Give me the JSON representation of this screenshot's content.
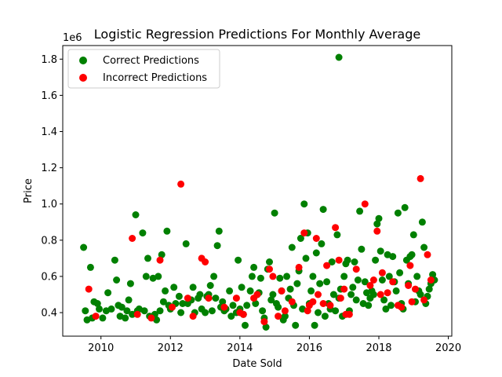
{
  "chart_data": {
    "type": "scatter",
    "title": "Logistic Regression Predictions For Monthly Average",
    "xlabel": "Date Sold",
    "ylabel": "Price",
    "y_offset_label": "1e6",
    "xlim": [
      2008.9,
      2020.1
    ],
    "ylim": [
      0.27,
      1.875
    ],
    "x_ticks": [
      2010,
      2012,
      2014,
      2016,
      2018,
      2020
    ],
    "x_tick_labels": [
      "2010",
      "2012",
      "2014",
      "2016",
      "2018",
      "2020"
    ],
    "y_ticks": [
      0.4,
      0.6,
      0.8,
      1.0,
      1.2,
      1.4,
      1.6,
      1.8
    ],
    "y_tick_labels": [
      "0.4",
      "0.6",
      "0.8",
      "1.0",
      "1.2",
      "1.4",
      "1.6",
      "1.8"
    ],
    "legend_position": "upper-left",
    "grid": false,
    "series": [
      {
        "name": "Correct Predictions",
        "color": "#008000",
        "points": [
          [
            2009.5,
            0.76
          ],
          [
            2009.55,
            0.41
          ],
          [
            2009.6,
            0.36
          ],
          [
            2009.7,
            0.65
          ],
          [
            2009.75,
            0.37
          ],
          [
            2009.8,
            0.46
          ],
          [
            2009.9,
            0.45
          ],
          [
            2009.95,
            0.42
          ],
          [
            2010.05,
            0.37
          ],
          [
            2010.15,
            0.41
          ],
          [
            2010.2,
            0.51
          ],
          [
            2010.3,
            0.42
          ],
          [
            2010.4,
            0.69
          ],
          [
            2010.45,
            0.58
          ],
          [
            2010.5,
            0.44
          ],
          [
            2010.55,
            0.38
          ],
          [
            2010.6,
            0.43
          ],
          [
            2010.7,
            0.37
          ],
          [
            2010.75,
            0.41
          ],
          [
            2010.8,
            0.47
          ],
          [
            2010.85,
            0.56
          ],
          [
            2010.9,
            0.39
          ],
          [
            2011.0,
            0.94
          ],
          [
            2011.05,
            0.41
          ],
          [
            2011.1,
            0.42
          ],
          [
            2011.2,
            0.84
          ],
          [
            2011.25,
            0.41
          ],
          [
            2011.3,
            0.6
          ],
          [
            2011.35,
            0.7
          ],
          [
            2011.4,
            0.38
          ],
          [
            2011.5,
            0.59
          ],
          [
            2011.55,
            0.39
          ],
          [
            2011.6,
            0.36
          ],
          [
            2011.65,
            0.6
          ],
          [
            2011.7,
            0.41
          ],
          [
            2011.75,
            0.72
          ],
          [
            2011.8,
            0.46
          ],
          [
            2011.85,
            0.52
          ],
          [
            2011.9,
            0.85
          ],
          [
            2011.95,
            0.44
          ],
          [
            2012.0,
            0.42
          ],
          [
            2012.1,
            0.54
          ],
          [
            2012.15,
            0.45
          ],
          [
            2012.25,
            0.49
          ],
          [
            2012.3,
            0.4
          ],
          [
            2012.35,
            0.45
          ],
          [
            2012.45,
            0.78
          ],
          [
            2012.5,
            0.45
          ],
          [
            2012.6,
            0.47
          ],
          [
            2012.65,
            0.54
          ],
          [
            2012.7,
            0.4
          ],
          [
            2012.8,
            0.48
          ],
          [
            2012.85,
            0.5
          ],
          [
            2012.9,
            0.42
          ],
          [
            2013.0,
            0.4
          ],
          [
            2013.05,
            0.49
          ],
          [
            2013.1,
            0.5
          ],
          [
            2013.15,
            0.55
          ],
          [
            2013.2,
            0.41
          ],
          [
            2013.25,
            0.6
          ],
          [
            2013.3,
            0.48
          ],
          [
            2013.35,
            0.77
          ],
          [
            2013.4,
            0.85
          ],
          [
            2013.45,
            0.43
          ],
          [
            2013.5,
            0.46
          ],
          [
            2013.55,
            0.41
          ],
          [
            2013.6,
            0.42
          ],
          [
            2013.7,
            0.52
          ],
          [
            2013.75,
            0.38
          ],
          [
            2013.8,
            0.44
          ],
          [
            2013.9,
            0.4
          ],
          [
            2013.95,
            0.69
          ],
          [
            2014.0,
            0.42
          ],
          [
            2014.05,
            0.54
          ],
          [
            2014.1,
            0.39
          ],
          [
            2014.15,
            0.33
          ],
          [
            2014.2,
            0.44
          ],
          [
            2014.3,
            0.52
          ],
          [
            2014.35,
            0.6
          ],
          [
            2014.4,
            0.65
          ],
          [
            2014.45,
            0.45
          ],
          [
            2014.5,
            0.5
          ],
          [
            2014.55,
            0.51
          ],
          [
            2014.6,
            0.59
          ],
          [
            2014.65,
            0.41
          ],
          [
            2014.7,
            0.37
          ],
          [
            2014.75,
            0.32
          ],
          [
            2014.8,
            0.64
          ],
          [
            2014.85,
            0.68
          ],
          [
            2014.9,
            0.47
          ],
          [
            2014.95,
            0.5
          ],
          [
            2015.0,
            0.95
          ],
          [
            2015.05,
            0.45
          ],
          [
            2015.1,
            0.43
          ],
          [
            2015.15,
            0.59
          ],
          [
            2015.2,
            0.52
          ],
          [
            2015.25,
            0.36
          ],
          [
            2015.3,
            0.38
          ],
          [
            2015.35,
            0.6
          ],
          [
            2015.4,
            0.48
          ],
          [
            2015.45,
            0.53
          ],
          [
            2015.5,
            0.76
          ],
          [
            2015.55,
            0.44
          ],
          [
            2015.6,
            0.33
          ],
          [
            2015.65,
            0.56
          ],
          [
            2015.7,
            0.63
          ],
          [
            2015.75,
            0.81
          ],
          [
            2015.8,
            0.42
          ],
          [
            2015.85,
            1.0
          ],
          [
            2015.9,
            0.7
          ],
          [
            2015.95,
            0.84
          ],
          [
            2016.0,
            0.45
          ],
          [
            2016.05,
            0.52
          ],
          [
            2016.1,
            0.6
          ],
          [
            2016.15,
            0.33
          ],
          [
            2016.2,
            0.73
          ],
          [
            2016.25,
            0.4
          ],
          [
            2016.3,
            0.56
          ],
          [
            2016.35,
            0.78
          ],
          [
            2016.4,
            0.97
          ],
          [
            2016.45,
            0.38
          ],
          [
            2016.5,
            0.57
          ],
          [
            2016.55,
            0.45
          ],
          [
            2016.6,
            0.42
          ],
          [
            2016.65,
            0.68
          ],
          [
            2016.7,
            0.5
          ],
          [
            2016.75,
            0.41
          ],
          [
            2016.8,
            0.83
          ],
          [
            2016.85,
            0.48
          ],
          [
            2016.9,
            0.53
          ],
          [
            2016.95,
            0.38
          ],
          [
            2016.85,
            1.81
          ],
          [
            2017.0,
            0.6
          ],
          [
            2017.05,
            0.67
          ],
          [
            2017.1,
            0.69
          ],
          [
            2017.15,
            0.41
          ],
          [
            2017.2,
            0.5
          ],
          [
            2017.25,
            0.54
          ],
          [
            2017.3,
            0.68
          ],
          [
            2017.35,
            0.47
          ],
          [
            2017.4,
            0.58
          ],
          [
            2017.45,
            0.96
          ],
          [
            2017.5,
            0.75
          ],
          [
            2017.55,
            0.45
          ],
          [
            2017.6,
            0.57
          ],
          [
            2017.65,
            0.51
          ],
          [
            2017.7,
            0.44
          ],
          [
            2017.75,
            0.48
          ],
          [
            2017.8,
            0.52
          ],
          [
            2017.85,
            0.5
          ],
          [
            2017.9,
            0.69
          ],
          [
            2017.95,
            0.89
          ],
          [
            2018.0,
            0.92
          ],
          [
            2018.05,
            0.74
          ],
          [
            2018.1,
            0.58
          ],
          [
            2018.15,
            0.47
          ],
          [
            2018.2,
            0.42
          ],
          [
            2018.25,
            0.72
          ],
          [
            2018.3,
            0.6
          ],
          [
            2018.35,
            0.44
          ],
          [
            2018.4,
            0.71
          ],
          [
            2018.45,
            0.57
          ],
          [
            2018.5,
            0.52
          ],
          [
            2018.55,
            0.95
          ],
          [
            2018.6,
            0.62
          ],
          [
            2018.65,
            0.45
          ],
          [
            2018.7,
            0.42
          ],
          [
            2018.75,
            0.98
          ],
          [
            2018.8,
            0.69
          ],
          [
            2018.85,
            0.56
          ],
          [
            2018.9,
            0.71
          ],
          [
            2018.95,
            0.72
          ],
          [
            2019.0,
            0.83
          ],
          [
            2019.05,
            0.46
          ],
          [
            2019.1,
            0.6
          ],
          [
            2019.15,
            0.52
          ],
          [
            2019.2,
            0.5
          ],
          [
            2019.25,
            0.9
          ],
          [
            2019.3,
            0.76
          ],
          [
            2019.35,
            0.45
          ],
          [
            2019.4,
            0.49
          ],
          [
            2019.45,
            0.53
          ],
          [
            2019.5,
            0.56
          ],
          [
            2019.55,
            0.61
          ],
          [
            2019.6,
            0.58
          ]
        ]
      },
      {
        "name": "Incorrect Predictions",
        "color": "#ff0000",
        "points": [
          [
            2009.65,
            0.53
          ],
          [
            2009.85,
            0.38
          ],
          [
            2010.9,
            0.81
          ],
          [
            2011.05,
            0.39
          ],
          [
            2011.45,
            0.37
          ],
          [
            2011.7,
            0.69
          ],
          [
            2012.05,
            0.43
          ],
          [
            2012.3,
            1.11
          ],
          [
            2012.5,
            0.48
          ],
          [
            2012.65,
            0.38
          ],
          [
            2012.9,
            0.7
          ],
          [
            2013.0,
            0.68
          ],
          [
            2013.1,
            0.48
          ],
          [
            2013.55,
            0.43
          ],
          [
            2013.9,
            0.48
          ],
          [
            2014.0,
            0.4
          ],
          [
            2014.1,
            0.39
          ],
          [
            2014.4,
            0.48
          ],
          [
            2014.5,
            0.5
          ],
          [
            2014.7,
            0.35
          ],
          [
            2014.85,
            0.64
          ],
          [
            2014.95,
            0.6
          ],
          [
            2015.1,
            0.38
          ],
          [
            2015.2,
            0.52
          ],
          [
            2015.3,
            0.41
          ],
          [
            2015.5,
            0.46
          ],
          [
            2015.7,
            0.65
          ],
          [
            2015.85,
            0.84
          ],
          [
            2015.95,
            0.41
          ],
          [
            2016.0,
            0.44
          ],
          [
            2016.1,
            0.46
          ],
          [
            2016.2,
            0.81
          ],
          [
            2016.25,
            0.5
          ],
          [
            2016.4,
            0.45
          ],
          [
            2016.5,
            0.66
          ],
          [
            2016.6,
            0.44
          ],
          [
            2016.75,
            0.87
          ],
          [
            2016.85,
            0.69
          ],
          [
            2016.9,
            0.48
          ],
          [
            2017.0,
            0.53
          ],
          [
            2017.05,
            0.39
          ],
          [
            2017.15,
            0.39
          ],
          [
            2017.35,
            0.64
          ],
          [
            2017.6,
            1.0
          ],
          [
            2017.75,
            0.55
          ],
          [
            2017.85,
            0.58
          ],
          [
            2017.95,
            0.85
          ],
          [
            2018.05,
            0.5
          ],
          [
            2018.1,
            0.62
          ],
          [
            2018.25,
            0.51
          ],
          [
            2018.4,
            0.57
          ],
          [
            2018.55,
            0.44
          ],
          [
            2018.65,
            0.43
          ],
          [
            2018.85,
            0.55
          ],
          [
            2018.9,
            0.66
          ],
          [
            2018.95,
            0.46
          ],
          [
            2019.05,
            0.53
          ],
          [
            2019.2,
            1.14
          ],
          [
            2019.3,
            0.47
          ],
          [
            2019.4,
            0.72
          ],
          [
            2019.5,
            0.58
          ]
        ]
      }
    ]
  }
}
